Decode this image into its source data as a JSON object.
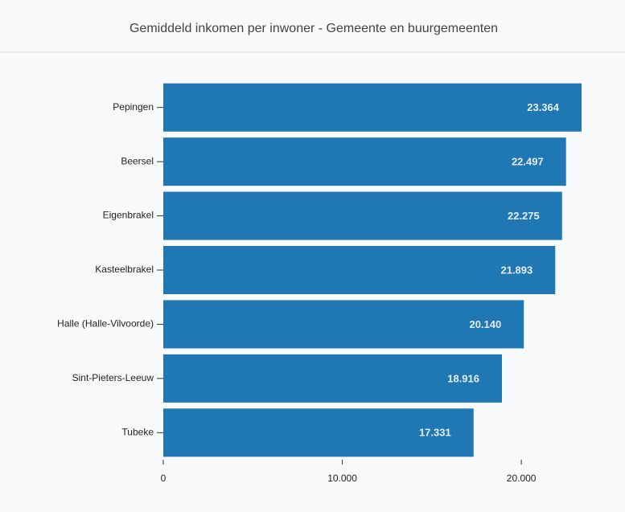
{
  "chart_data": {
    "type": "hbar",
    "title": "Gemiddeld inkomen per inwoner - Gemeente en buurgemeenten",
    "categories": [
      "Pepingen",
      "Beersel",
      "Eigenbrakel",
      "Kasteelbrakel",
      "Halle (Halle-Vilvoorde)",
      "Sint-Pieters-Leeuw",
      "Tubeke"
    ],
    "values": [
      23364,
      22497,
      22275,
      21893,
      20140,
      18916,
      17331
    ],
    "value_labels": [
      "23.364",
      "22.497",
      "22.275",
      "21.893",
      "20.140",
      "18.916",
      "17.331"
    ],
    "color": "#1f77b4",
    "xlim": [
      0,
      23364
    ],
    "xticks": [
      0,
      {
        "value": 10000,
        "label": "10.000"
      },
      {
        "value": 20000,
        "label": "20.000"
      }
    ]
  }
}
